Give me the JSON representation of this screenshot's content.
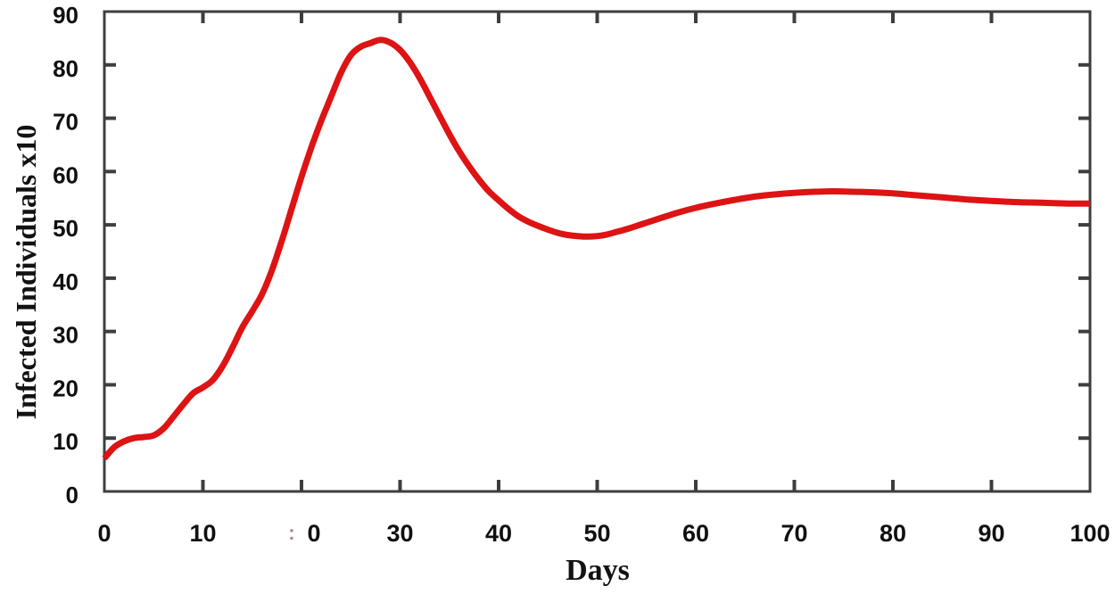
{
  "page": {
    "background": "#ffffff"
  },
  "chart_data": {
    "type": "line",
    "title": "",
    "xlabel": "Days",
    "ylabel": "Infected Individuals x10",
    "xlim": [
      0,
      100
    ],
    "ylim": [
      0,
      90
    ],
    "x_ticks": [
      0,
      10,
      20,
      30,
      40,
      50,
      60,
      70,
      80,
      90,
      100
    ],
    "x_tick_labels": [
      "0",
      "10",
      "0",
      "30",
      "40",
      "50",
      "60",
      "70",
      "80",
      "90",
      "100"
    ],
    "x_tick_label_dx": {
      "2": 14
    },
    "x_tick_label_artifact": {
      "text": ":",
      "day": 19
    },
    "y_ticks": [
      0,
      10,
      20,
      30,
      40,
      50,
      60,
      70,
      80,
      90
    ],
    "y_tick_labels": [
      "0",
      "10",
      "20",
      "30",
      "40",
      "50",
      "60",
      "70",
      "80",
      "90"
    ],
    "grid": false,
    "legend_position": "none",
    "frame": "box",
    "tick_style": "inward-all-sides",
    "colors": {
      "curve": "#dd1314",
      "axis": "#3d3f3e",
      "tick_label": "#101010",
      "artifact": "#ad8c8c",
      "background": "#ffffff"
    },
    "series": [
      {
        "name": "infected-individuals",
        "line_width": 7,
        "points": [
          [
            0,
            6.2
          ],
          [
            1,
            8.3
          ],
          [
            2,
            9.4
          ],
          [
            3,
            10.0
          ],
          [
            4,
            10.2
          ],
          [
            5,
            10.5
          ],
          [
            6,
            11.8
          ],
          [
            7,
            14.0
          ],
          [
            8,
            16.3
          ],
          [
            9,
            18.4
          ],
          [
            10,
            19.5
          ],
          [
            11,
            20.9
          ],
          [
            12,
            23.5
          ],
          [
            13,
            27.0
          ],
          [
            14,
            30.8
          ],
          [
            15,
            33.8
          ],
          [
            16,
            37.0
          ],
          [
            17,
            41.5
          ],
          [
            18,
            47.0
          ],
          [
            19,
            53.0
          ],
          [
            20,
            59.0
          ],
          [
            21,
            64.5
          ],
          [
            22,
            69.5
          ],
          [
            23,
            74.0
          ],
          [
            24,
            78.5
          ],
          [
            25,
            81.8
          ],
          [
            26,
            83.4
          ],
          [
            27,
            84.1
          ],
          [
            28,
            84.7
          ],
          [
            29,
            84.2
          ],
          [
            30,
            82.8
          ],
          [
            31,
            80.5
          ],
          [
            32,
            77.5
          ],
          [
            33,
            74.0
          ],
          [
            34,
            70.5
          ],
          [
            35,
            67.0
          ],
          [
            36,
            63.8
          ],
          [
            37,
            61.0
          ],
          [
            38,
            58.5
          ],
          [
            39,
            56.3
          ],
          [
            40,
            54.6
          ],
          [
            41,
            53.0
          ],
          [
            42,
            51.6
          ],
          [
            43,
            50.6
          ],
          [
            44,
            49.8
          ],
          [
            45,
            49.1
          ],
          [
            46,
            48.5
          ],
          [
            47,
            48.1
          ],
          [
            48,
            47.9
          ],
          [
            49,
            47.8
          ],
          [
            50,
            47.9
          ],
          [
            51,
            48.2
          ],
          [
            52,
            48.7
          ],
          [
            53,
            49.2
          ],
          [
            54,
            49.8
          ],
          [
            55,
            50.4
          ],
          [
            56,
            51.0
          ],
          [
            57,
            51.6
          ],
          [
            58,
            52.2
          ],
          [
            60,
            53.2
          ],
          [
            62,
            54.0
          ],
          [
            64,
            54.7
          ],
          [
            66,
            55.3
          ],
          [
            68,
            55.7
          ],
          [
            70,
            56.0
          ],
          [
            72,
            56.2
          ],
          [
            74,
            56.3
          ],
          [
            76,
            56.2
          ],
          [
            78,
            56.1
          ],
          [
            80,
            55.9
          ],
          [
            82,
            55.6
          ],
          [
            84,
            55.3
          ],
          [
            86,
            55.0
          ],
          [
            88,
            54.7
          ],
          [
            90,
            54.5
          ],
          [
            92,
            54.3
          ],
          [
            94,
            54.2
          ],
          [
            96,
            54.1
          ],
          [
            98,
            54.0
          ],
          [
            100,
            54.0
          ]
        ]
      }
    ]
  }
}
